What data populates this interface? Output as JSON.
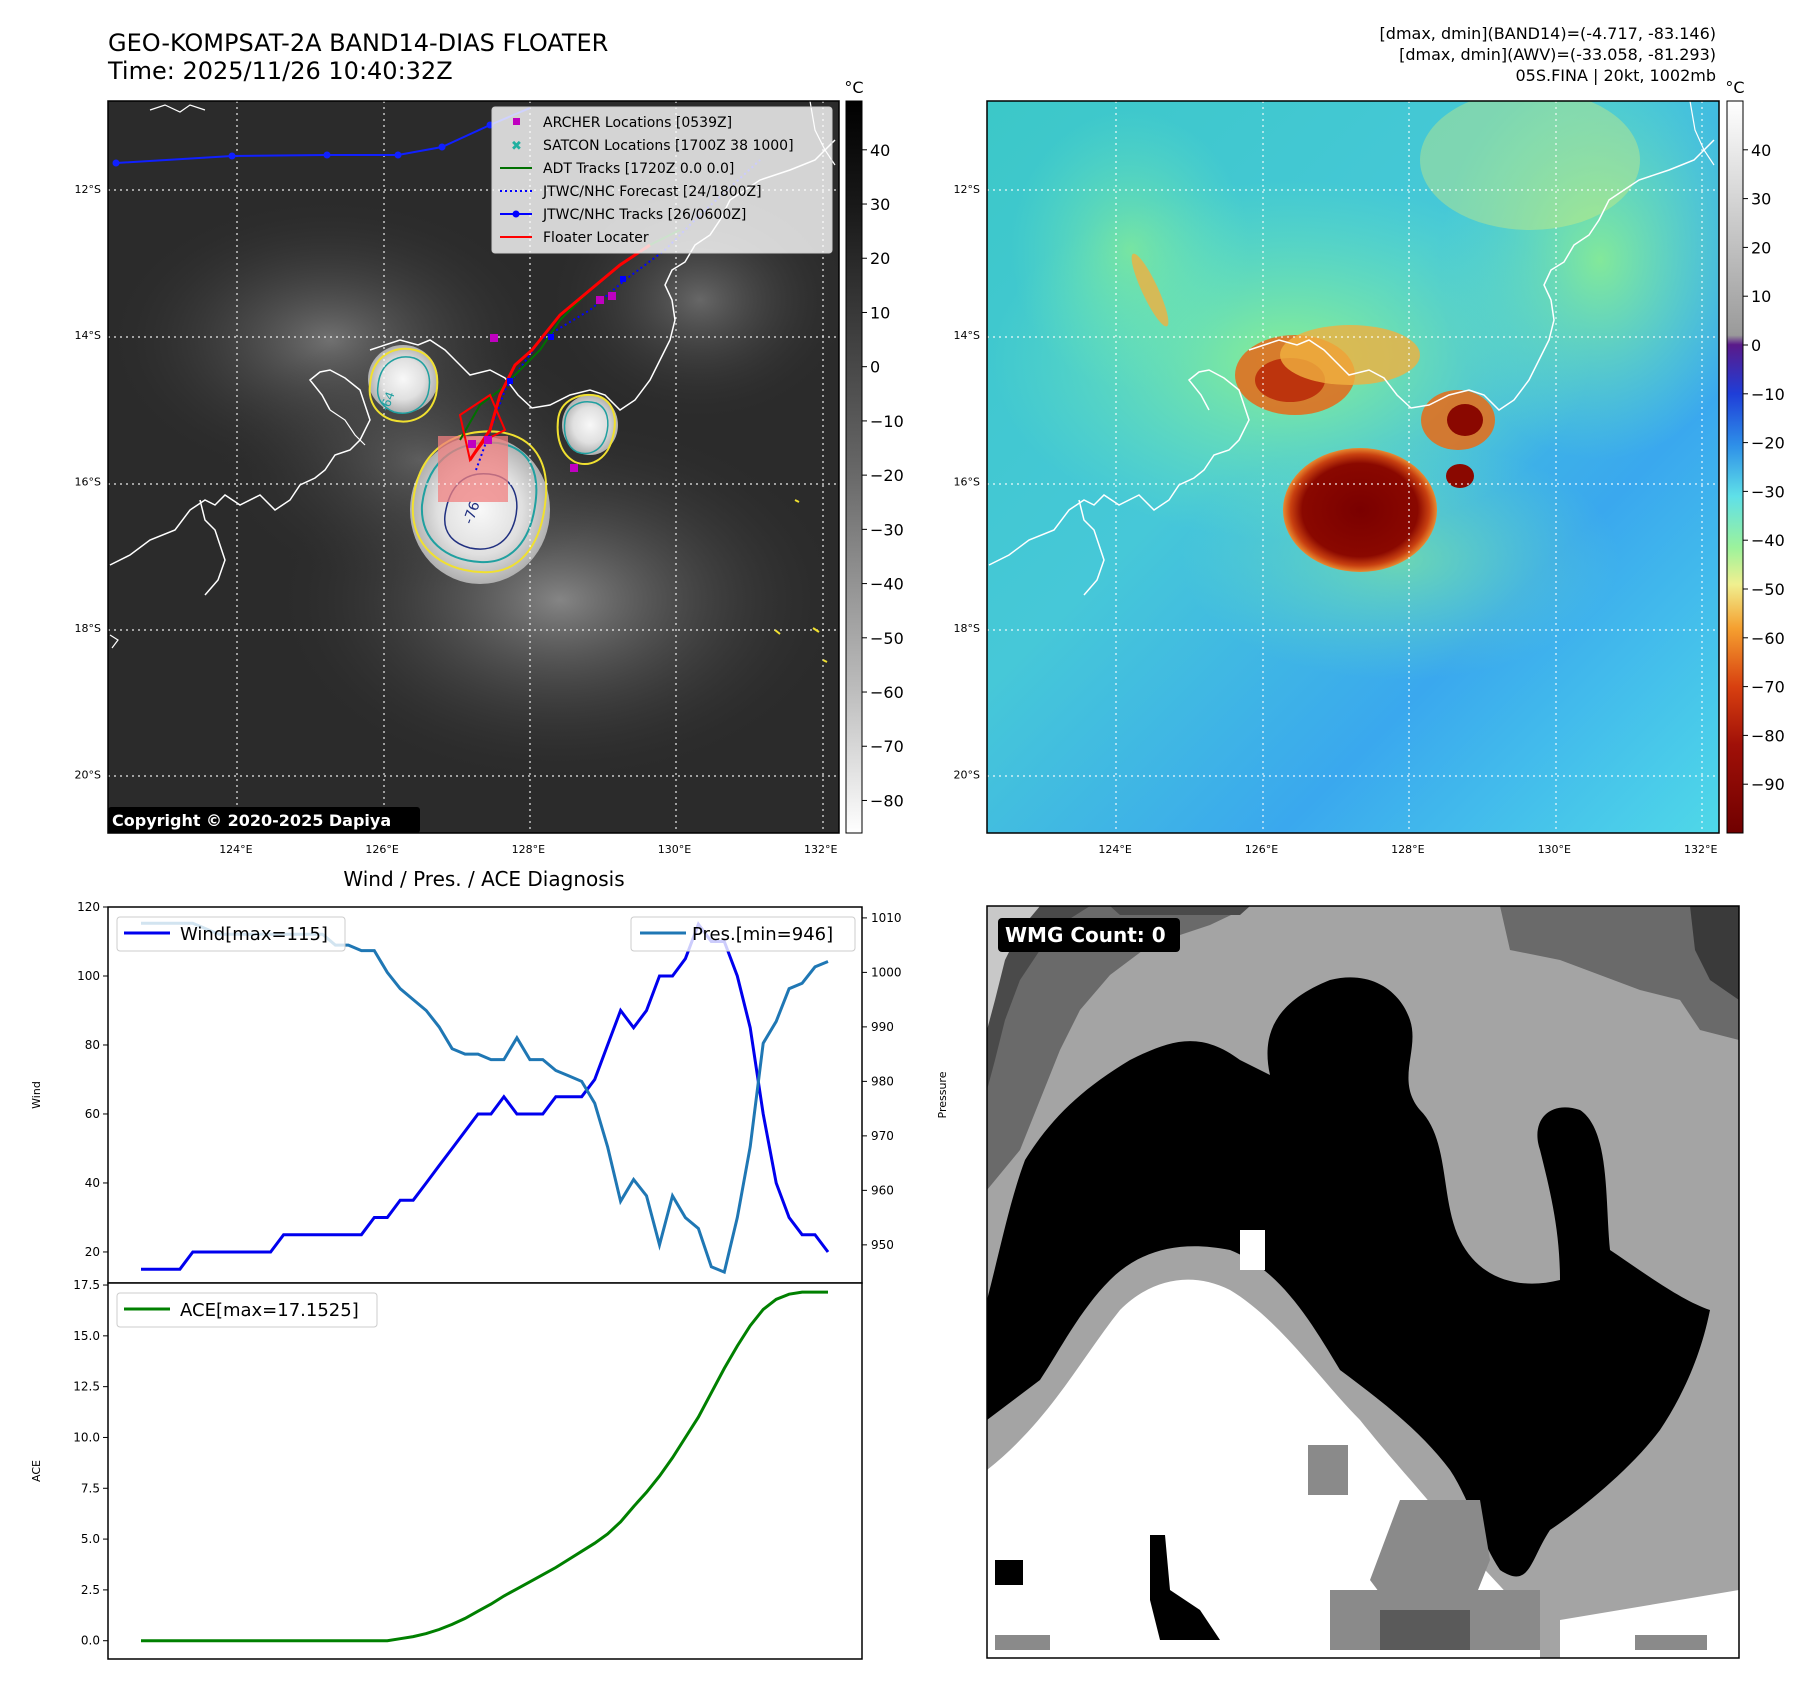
{
  "header": {
    "title_line1": "GEO-KOMPSAT-2A BAND14-DIAS FLOATER",
    "title_line2": "Time: 2025/11/26 10:40:32Z",
    "stats_line1": "[dmax, dmin](BAND14)=(-4.717, -83.146)",
    "stats_line2": "[dmax, dmin](AWV)=(-33.058, -81.293)",
    "stats_line3": "05S.FINA | 20kt, 1002mb"
  },
  "map": {
    "lat_labels": [
      "12°S",
      "14°S",
      "16°S",
      "18°S",
      "20°S"
    ],
    "lat_values": [
      -12,
      -14,
      -16,
      -18,
      -20
    ],
    "lon_labels": [
      "124°E",
      "126°E",
      "128°E",
      "130°E",
      "132°E"
    ],
    "lon_values": [
      124,
      126,
      128,
      130,
      132
    ],
    "copyright": "Copyright © 2020-2025 Dapiya",
    "contour_labels": [
      "-76",
      "-64"
    ],
    "legend": [
      {
        "label": "ARCHER Locations [0539Z]",
        "color": "#c000c0",
        "marker": "square"
      },
      {
        "label": "SATCON Locations [1700Z 38 1000]",
        "color": "#20b0a0",
        "marker": "x"
      },
      {
        "label": "ADT Tracks [1720Z 0.0 0.0]",
        "color": "#007000",
        "marker": "line"
      },
      {
        "label": "JTWC/NHC Forecast [24/1800Z]",
        "color": "#0000ff",
        "marker": "dotted"
      },
      {
        "label": "JTWC/NHC Tracks [26/0600Z]",
        "color": "#0000ff",
        "marker": "line-dot"
      },
      {
        "label": "Floater Locater",
        "color": "#ff0000",
        "marker": "line"
      }
    ]
  },
  "colorbar_ir": {
    "unit": "°C",
    "ticks": [
      "40",
      "30",
      "20",
      "10",
      "0",
      "−10",
      "−20",
      "−30",
      "−40",
      "−50",
      "−60",
      "−70",
      "−80"
    ],
    "tick_values": [
      40,
      30,
      20,
      10,
      0,
      -10,
      -20,
      -30,
      -40,
      -50,
      -60,
      -70,
      -80
    ],
    "range": [
      -86,
      49
    ]
  },
  "colorbar_awv": {
    "unit": "°C",
    "ticks": [
      "40",
      "30",
      "20",
      "10",
      "0",
      "−10",
      "−20",
      "−30",
      "−40",
      "−50",
      "−60",
      "−70",
      "−80",
      "−90"
    ],
    "tick_values": [
      40,
      30,
      20,
      10,
      0,
      -10,
      -20,
      -30,
      -40,
      -50,
      -60,
      -70,
      -80,
      -90
    ],
    "range": [
      -100,
      50
    ]
  },
  "wmg": {
    "label": "WMG Count: 0"
  },
  "chart_data": [
    {
      "type": "line",
      "title": "Wind / Pres. / ACE Diagnosis",
      "ylabel": "Wind",
      "ylabel_right": "Pressure",
      "ylim": [
        11,
        120
      ],
      "ylim_right": [
        943,
        1012
      ],
      "yticks": [
        20,
        40,
        60,
        80,
        100,
        120
      ],
      "yticks_right": [
        950,
        960,
        970,
        980,
        990,
        1000,
        1010
      ],
      "series": [
        {
          "name": "Wind[max=115]",
          "color": "#0000ee",
          "axis": "left",
          "values": [
            15,
            15,
            15,
            15,
            20,
            20,
            20,
            20,
            20,
            20,
            20,
            25,
            25,
            25,
            25,
            25,
            25,
            25,
            30,
            30,
            35,
            35,
            40,
            45,
            50,
            55,
            60,
            60,
            65,
            60,
            60,
            60,
            65,
            65,
            65,
            70,
            80,
            90,
            85,
            90,
            100,
            100,
            105,
            115,
            110,
            110,
            100,
            85,
            60,
            40,
            30,
            25,
            25,
            20
          ]
        },
        {
          "name": "Pres.[min=946]",
          "color": "#1f77b4",
          "axis": "right",
          "values": [
            1009,
            1009,
            1009,
            1009,
            1009,
            1008,
            1007,
            1007,
            1007,
            1007,
            1007,
            1007,
            1007,
            1007,
            1007,
            1005,
            1005,
            1004,
            1004,
            1000,
            997,
            995,
            993,
            990,
            986,
            985,
            985,
            984,
            984,
            988,
            984,
            984,
            982,
            981,
            980,
            976,
            968,
            958,
            962,
            959,
            950,
            959,
            955,
            953,
            946,
            945,
            955,
            968,
            987,
            991,
            997,
            998,
            1001,
            1002
          ]
        }
      ]
    },
    {
      "type": "line",
      "ylabel": "ACE",
      "ylim": [
        -0.9,
        17.6
      ],
      "yticks": [
        "0.0",
        "2.5",
        "5.0",
        "7.5",
        "10.0",
        "12.5",
        "15.0",
        "17.5"
      ],
      "ytick_values": [
        0,
        2.5,
        5,
        7.5,
        10,
        12.5,
        15,
        17.5
      ],
      "series": [
        {
          "name": "ACE[max=17.1525]",
          "color": "#008000",
          "axis": "left",
          "values": [
            0,
            0,
            0,
            0,
            0,
            0,
            0,
            0,
            0,
            0,
            0,
            0,
            0,
            0,
            0,
            0,
            0,
            0,
            0,
            0,
            0.1,
            0.2,
            0.35,
            0.55,
            0.8,
            1.1,
            1.45,
            1.8,
            2.2,
            2.55,
            2.9,
            3.25,
            3.6,
            4.0,
            4.4,
            4.8,
            5.25,
            5.85,
            6.6,
            7.3,
            8.1,
            9.0,
            10.0,
            11.0,
            12.2,
            13.4,
            14.5,
            15.5,
            16.3,
            16.8,
            17.05,
            17.15,
            17.15,
            17.15
          ]
        }
      ]
    }
  ]
}
